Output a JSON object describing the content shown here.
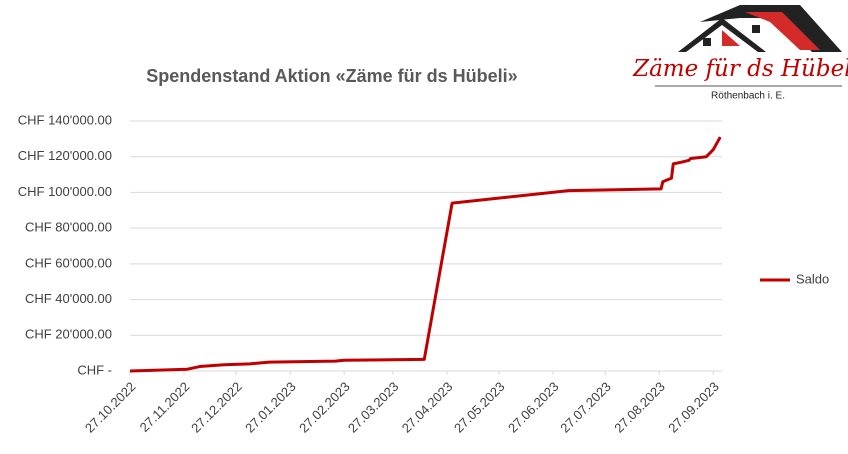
{
  "chart_data": {
    "type": "line",
    "title": "Spendenstand Aktion «Zäme für ds Hübeli»",
    "x": [
      "2022-10-27",
      "2022-11-29",
      "2022-12-06",
      "2022-12-20",
      "2023-01-04",
      "2023-01-15",
      "2023-02-22",
      "2023-02-27",
      "2023-04-14",
      "2023-04-30",
      "2023-07-06",
      "2023-08-28",
      "2023-08-29",
      "2023-09-03",
      "2023-09-04",
      "2023-09-09",
      "2023-09-13",
      "2023-09-14",
      "2023-09-23",
      "2023-09-27",
      "2023-10-01"
    ],
    "series": [
      {
        "name": "Saldo",
        "color": "#c00000",
        "values": [
          0,
          1000,
          2500,
          3500,
          4000,
          5000,
          5500,
          6000,
          6500,
          94000,
          101000,
          102000,
          106000,
          108000,
          116000,
          117000,
          118000,
          119000,
          120000,
          124000,
          131000
        ]
      }
    ],
    "xlim": [
      "2022-10-27",
      "2023-10-02"
    ],
    "xticks": [
      {
        "value": "2022-10-27",
        "label": "27.10.2022"
      },
      {
        "value": "2022-11-27",
        "label": "27.11.2022"
      },
      {
        "value": "2022-12-27",
        "label": "27.12.2022"
      },
      {
        "value": "2023-01-27",
        "label": "27.01.2023"
      },
      {
        "value": "2023-02-27",
        "label": "27.02.2023"
      },
      {
        "value": "2023-03-27",
        "label": "27.03.2023"
      },
      {
        "value": "2023-04-27",
        "label": "27.04.2023"
      },
      {
        "value": "2023-05-27",
        "label": "27.05.2023"
      },
      {
        "value": "2023-06-27",
        "label": "27.06.2023"
      },
      {
        "value": "2023-07-27",
        "label": "27.07.2023"
      },
      {
        "value": "2023-08-27",
        "label": "27.08.2023"
      },
      {
        "value": "2023-09-27",
        "label": "27.09.2023"
      }
    ],
    "ylim": [
      0,
      140000
    ],
    "yticks": [
      {
        "value": 0,
        "label": "CHF -"
      },
      {
        "value": 20000,
        "label": "CHF 20'000.00"
      },
      {
        "value": 40000,
        "label": "CHF 40'000.00"
      },
      {
        "value": 60000,
        "label": "CHF 60'000.00"
      },
      {
        "value": 80000,
        "label": "CHF 80'000.00"
      },
      {
        "value": 100000,
        "label": "CHF 100'000.00"
      },
      {
        "value": 120000,
        "label": "CHF 120'000.00"
      },
      {
        "value": 140000,
        "label": "CHF 140'000.00"
      }
    ],
    "grid": true,
    "legend": "right"
  },
  "logo": {
    "title": "Zäme für ds Hübeli",
    "subtitle": "Röthenbach i. E."
  }
}
